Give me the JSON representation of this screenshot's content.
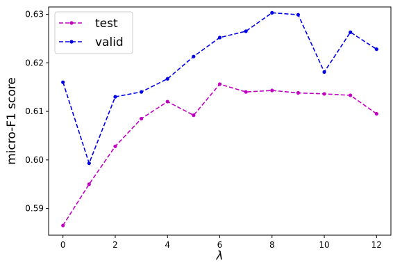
{
  "chart_data": {
    "type": "line",
    "title": "",
    "xlabel": "λ",
    "ylabel": "micro-F1 score",
    "x": [
      0,
      1,
      2,
      3,
      4,
      5,
      6,
      7,
      8,
      9,
      10,
      11,
      12
    ],
    "xlim": [
      -0.55,
      12.55
    ],
    "ylim": [
      0.5845,
      0.6315
    ],
    "xticks": [
      0,
      2,
      4,
      6,
      8,
      10,
      12
    ],
    "yticks": [
      0.59,
      0.6,
      0.61,
      0.62,
      0.63
    ],
    "xtick_labels": [
      "0",
      "2",
      "4",
      "6",
      "8",
      "10",
      "12"
    ],
    "ytick_labels": [
      "0.59",
      "0.60",
      "0.61",
      "0.62",
      "0.63"
    ],
    "grid": false,
    "legend_position": "top-left",
    "series": [
      {
        "name": "test",
        "color": "#bf00bf",
        "line_style": "dashed",
        "marker": "dot",
        "values": [
          0.5865,
          0.595,
          0.6028,
          0.6085,
          0.612,
          0.6092,
          0.6156,
          0.614,
          0.6143,
          0.6138,
          0.6136,
          0.6133,
          0.6095
        ]
      },
      {
        "name": "valid",
        "color": "#0000e6",
        "line_style": "dashed",
        "marker": "dot",
        "values": [
          0.616,
          0.5993,
          0.613,
          0.614,
          0.6167,
          0.6213,
          0.6252,
          0.6265,
          0.6303,
          0.6299,
          0.6181,
          0.6263,
          0.6228
        ]
      }
    ]
  }
}
